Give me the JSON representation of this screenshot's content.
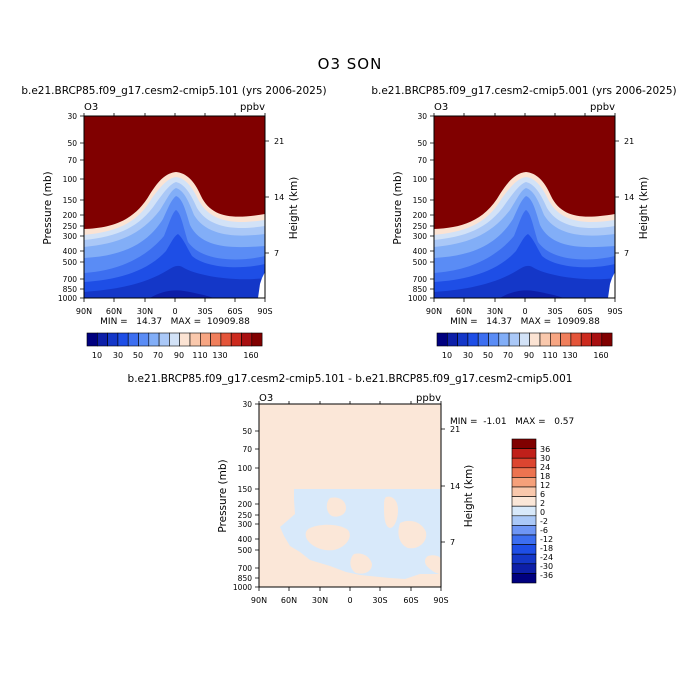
{
  "figure": {
    "title": "O3 SON",
    "diff_title": "b.e21.BRCP85.f09_g17.cesm2-cmip5.101 - b.e21.BRCP85.f09_g17.cesm2-cmip5.001"
  },
  "chart_data": [
    {
      "type": "heatmap",
      "title": "b.e21.BRCP85.f09_g17.cesm2-cmip5.101 (yrs 2006-2025)",
      "left_string": "O3",
      "right_string": "ppbv",
      "ylabel": "Pressure (mb)",
      "ylabel_right": "Height (km)",
      "x_ticks": [
        "90N",
        "60N",
        "30N",
        "0",
        "30S",
        "60S",
        "90S"
      ],
      "y_ticks": [
        "30",
        "50",
        "70",
        "100",
        "150",
        "200",
        "250",
        "300",
        "400",
        "500",
        "700",
        "850",
        "1000"
      ],
      "height_ticks": [
        "21",
        "14",
        "7"
      ],
      "ylim": [
        1000,
        30
      ],
      "xlim": [
        90,
        -90
      ],
      "stats": "MIN =   14.37   MAX =  10909.88",
      "levels": [
        10,
        20,
        30,
        40,
        50,
        60,
        70,
        80,
        90,
        100,
        110,
        120,
        130,
        140,
        150,
        160
      ],
      "colorbar_labels": [
        "10",
        "30",
        "50",
        "70",
        "90",
        "110",
        "130",
        "160"
      ]
    },
    {
      "type": "heatmap",
      "title": "b.e21.BRCP85.f09_g17.cesm2-cmip5.001 (yrs 2006-2025)",
      "left_string": "O3",
      "right_string": "ppbv",
      "ylabel": "Pressure (mb)",
      "ylabel_right": "Height (km)",
      "x_ticks": [
        "90N",
        "60N",
        "30N",
        "0",
        "30S",
        "60S",
        "90S"
      ],
      "y_ticks": [
        "30",
        "50",
        "70",
        "100",
        "150",
        "200",
        "250",
        "300",
        "400",
        "500",
        "700",
        "850",
        "1000"
      ],
      "height_ticks": [
        "21",
        "14",
        "7"
      ],
      "ylim": [
        1000,
        30
      ],
      "xlim": [
        90,
        -90
      ],
      "stats": "MIN =   14.37   MAX =  10909.88",
      "levels": [
        10,
        20,
        30,
        40,
        50,
        60,
        70,
        80,
        90,
        100,
        110,
        120,
        130,
        140,
        150,
        160
      ],
      "colorbar_labels": [
        "10",
        "30",
        "50",
        "70",
        "90",
        "110",
        "130",
        "160"
      ]
    },
    {
      "type": "heatmap",
      "title": "b.e21.BRCP85.f09_g17.cesm2-cmip5.101 - b.e21.BRCP85.f09_g17.cesm2-cmip5.001",
      "left_string": "O3",
      "right_string": "ppbv",
      "ylabel": "Pressure (mb)",
      "ylabel_right": "Height (km)",
      "x_ticks": [
        "90N",
        "60N",
        "30N",
        "0",
        "30S",
        "60S",
        "90S"
      ],
      "y_ticks": [
        "30",
        "50",
        "70",
        "100",
        "150",
        "200",
        "250",
        "300",
        "400",
        "500",
        "700",
        "850",
        "1000"
      ],
      "height_ticks": [
        "21",
        "14",
        "7"
      ],
      "ylim": [
        1000,
        30
      ],
      "xlim": [
        90,
        -90
      ],
      "stats": "MIN =  -1.01   MAX =   0.57",
      "levels": [
        -36,
        -30,
        -24,
        -18,
        -12,
        -6,
        -2,
        0,
        2,
        6,
        12,
        18,
        24,
        30,
        36
      ],
      "colorbar_labels": [
        "36",
        "30",
        "24",
        "18",
        "12",
        "6",
        "2",
        "0",
        "-2",
        "-6",
        "-12",
        "-18",
        "-24",
        "-30",
        "-36"
      ]
    }
  ],
  "colors": {
    "seq_palette": [
      "#00007f",
      "#0d1fa8",
      "#1437c8",
      "#1e4ee6",
      "#3c6ef0",
      "#5a8cf5",
      "#82aef7",
      "#aac8f7",
      "#d2e2f7",
      "#fbe3d3",
      "#f9c8ac",
      "#f7a683",
      "#f07f5c",
      "#e4553a",
      "#cc2a1e",
      "#a80f10",
      "#800000"
    ],
    "diff_palette": [
      "#00007f",
      "#0d1fa8",
      "#1437c8",
      "#1e4ee6",
      "#3c6ef0",
      "#6e96f5",
      "#aac8f7",
      "#d8e9fa",
      "#fbe7d8",
      "#f9c8ac",
      "#f5a07a",
      "#ec7350",
      "#dc4530",
      "#c0201a",
      "#800000"
    ]
  }
}
